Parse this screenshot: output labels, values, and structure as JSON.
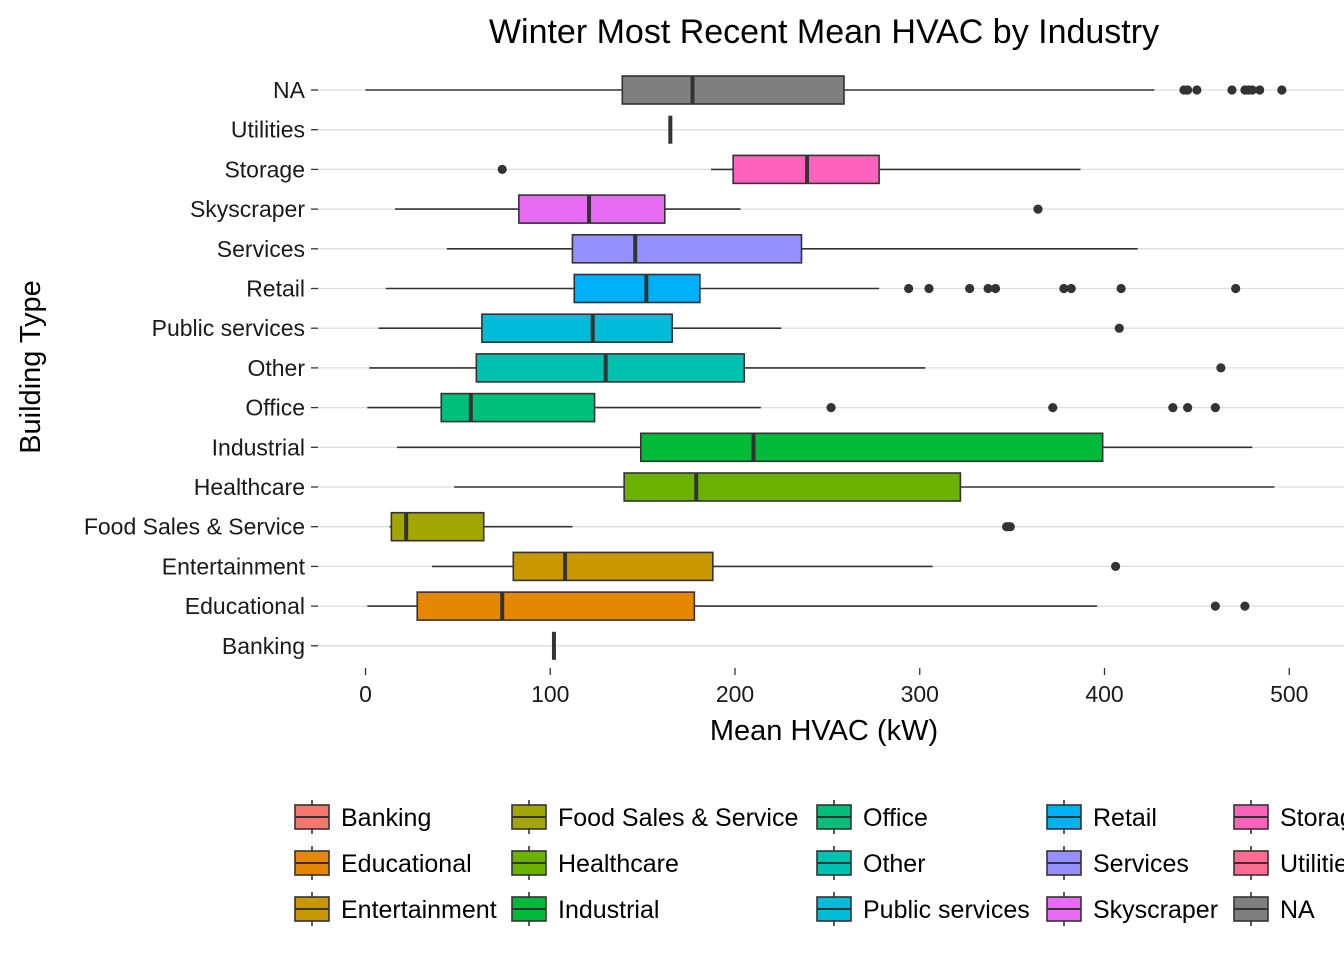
{
  "chart_data": {
    "type": "boxplot",
    "title": "Winter Most Recent Mean HVAC by Industry",
    "xlabel": "Mean HVAC (kW)",
    "ylabel": "Building Type",
    "xlim": [
      -28,
      530
    ],
    "xticks": [
      0,
      100,
      200,
      300,
      400,
      500
    ],
    "grid": "horizontal major lines",
    "legend": "bottom",
    "categories": [
      "Banking",
      "Educational",
      "Entertainment",
      "Food Sales & Service",
      "Healthcare",
      "Industrial",
      "Office",
      "Other",
      "Public services",
      "Retail",
      "Services",
      "Skyscraper",
      "Storage",
      "Utilities",
      "NA"
    ],
    "series": [
      {
        "name": "Banking",
        "color": "#F8766D",
        "min": 102,
        "q1": 102,
        "median": 102,
        "q3": 102,
        "max": 102,
        "outliers": []
      },
      {
        "name": "Educational",
        "color": "#E58700",
        "min": 1,
        "q1": 28,
        "median": 74,
        "q3": 178,
        "max": 396,
        "outliers": [
          460,
          476
        ]
      },
      {
        "name": "Entertainment",
        "color": "#C99800",
        "min": 36,
        "q1": 80,
        "median": 108,
        "q3": 188,
        "max": 307,
        "outliers": [
          406
        ]
      },
      {
        "name": "Food Sales & Service",
        "color": "#A3A500",
        "min": 13,
        "q1": 14,
        "median": 22,
        "q3": 64,
        "max": 112,
        "outliers": [
          347,
          348,
          349
        ]
      },
      {
        "name": "Healthcare",
        "color": "#6BB100",
        "min": 48,
        "q1": 140,
        "median": 179,
        "q3": 322,
        "max": 492,
        "outliers": []
      },
      {
        "name": "Industrial",
        "color": "#00BA38",
        "min": 17,
        "q1": 149,
        "median": 210,
        "q3": 399,
        "max": 480,
        "outliers": []
      },
      {
        "name": "Office",
        "color": "#00BF7D",
        "min": 1,
        "q1": 41,
        "median": 57,
        "q3": 124,
        "max": 214,
        "outliers": [
          252,
          372,
          437,
          445,
          460
        ]
      },
      {
        "name": "Other",
        "color": "#00C0AF",
        "min": 2,
        "q1": 60,
        "median": 130,
        "q3": 205,
        "max": 303,
        "outliers": [
          463
        ]
      },
      {
        "name": "Public services",
        "color": "#00BCD8",
        "min": 7,
        "q1": 63,
        "median": 123,
        "q3": 166,
        "max": 225,
        "outliers": [
          408
        ]
      },
      {
        "name": "Retail",
        "color": "#00B0F6",
        "min": 11,
        "q1": 113,
        "median": 152,
        "q3": 181,
        "max": 278,
        "outliers": [
          294,
          305,
          327,
          337,
          341,
          378,
          382,
          409,
          471
        ]
      },
      {
        "name": "Services",
        "color": "#9590FF",
        "min": 44,
        "q1": 112,
        "median": 146,
        "q3": 236,
        "max": 418,
        "outliers": []
      },
      {
        "name": "Skyscraper",
        "color": "#E76BF3",
        "min": 16,
        "q1": 83,
        "median": 121,
        "q3": 162,
        "max": 203,
        "outliers": [
          364
        ]
      },
      {
        "name": "Storage",
        "color": "#FF62BC",
        "min": 187,
        "q1": 199,
        "median": 239,
        "q3": 278,
        "max": 387,
        "outliers": [
          74
        ]
      },
      {
        "name": "Utilities",
        "color": "#FF6C91",
        "min": 165,
        "q1": 165,
        "median": 165,
        "q3": 165,
        "max": 165,
        "outliers": []
      },
      {
        "name": "NA",
        "color": "#7F7F7F",
        "min": 0,
        "q1": 139,
        "median": 177,
        "q3": 259,
        "max": 427,
        "outliers": [
          443,
          445,
          450,
          469,
          476,
          478,
          480,
          484,
          496
        ]
      }
    ]
  }
}
